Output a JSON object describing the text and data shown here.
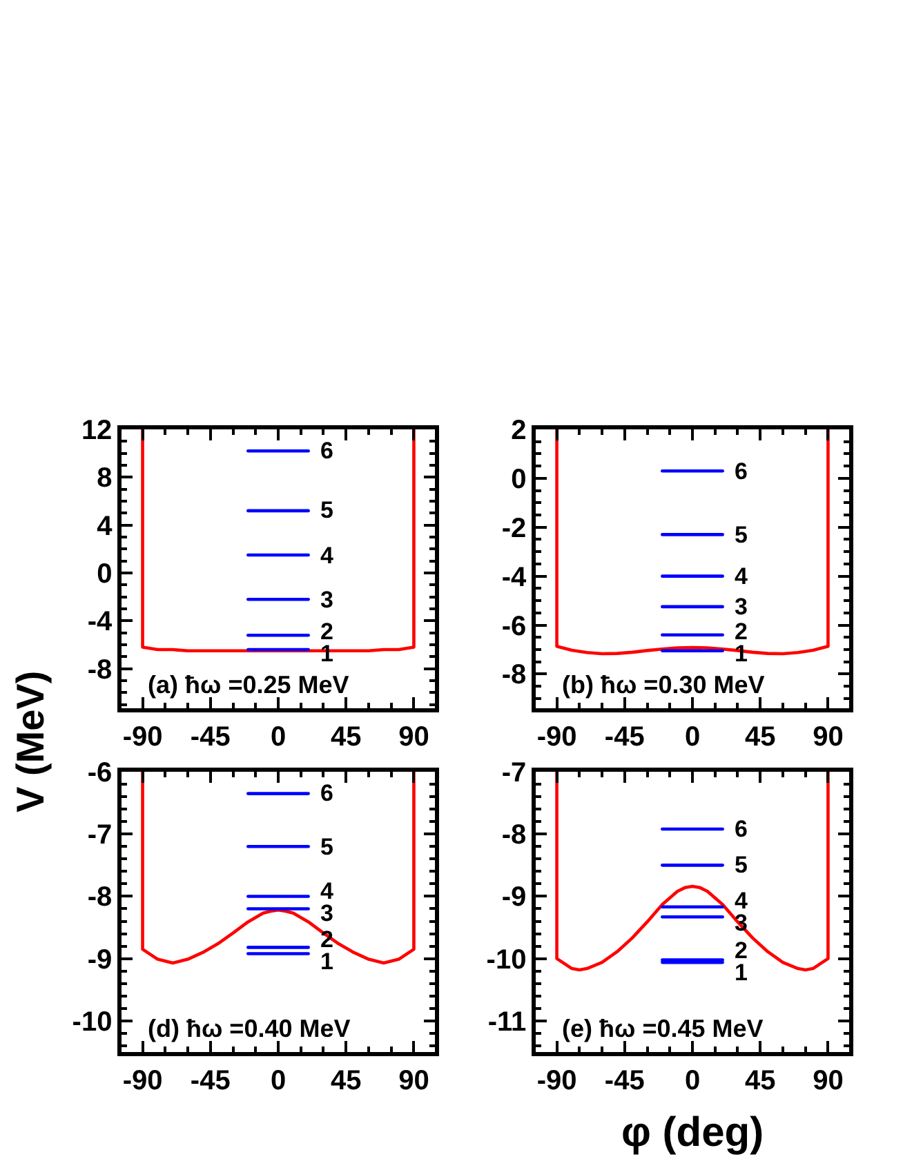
{
  "chart_data": [
    {
      "type": "line",
      "title": "(a) ħω =0.25 MeV",
      "ylabel": "V (MeV)",
      "xlim": [
        -104,
        104
      ],
      "ylim": [
        -11.3,
        12
      ],
      "xticks": [
        -90,
        {
          "value": -75,
          "label": null
        },
        {
          "value": -60,
          "label": null
        },
        -45,
        {
          "value": -30,
          "label": null
        },
        {
          "value": -15,
          "label": null
        },
        0,
        {
          "value": 15,
          "label": null
        },
        {
          "value": 30,
          "label": null
        },
        45,
        {
          "value": 60,
          "label": null
        },
        {
          "value": 75,
          "label": null
        },
        90
      ],
      "yticks": [
        12,
        {
          "value": 11,
          "label": null
        },
        {
          "value": 10,
          "label": null
        },
        {
          "value": 9,
          "label": null
        },
        8,
        {
          "value": 7,
          "label": null
        },
        {
          "value": 6,
          "label": null
        },
        {
          "value": 5,
          "label": null
        },
        4,
        {
          "value": 3,
          "label": null
        },
        {
          "value": 2,
          "label": null
        },
        {
          "value": 1,
          "label": null
        },
        0,
        {
          "value": -1,
          "label": null
        },
        {
          "value": -2,
          "label": null
        },
        {
          "value": -3,
          "label": null
        },
        -4,
        {
          "value": -5,
          "label": null
        },
        {
          "value": -6,
          "label": null
        },
        {
          "value": -7,
          "label": null
        },
        -8,
        {
          "value": -9,
          "label": null
        },
        {
          "value": -10,
          "label": null
        },
        {
          "value": -11,
          "label": null
        }
      ],
      "series": [
        {
          "color": "#ff0000",
          "x": [
            -90,
            -90,
            -80,
            -70,
            -60,
            -50,
            -40,
            -30,
            -20,
            -10,
            0,
            10,
            20,
            30,
            40,
            50,
            60,
            70,
            80,
            90,
            90
          ],
          "values": [
            12,
            -6.2,
            -6.4,
            -6.4,
            -6.5,
            -6.5,
            -6.5,
            -6.5,
            -6.5,
            -6.5,
            -6.5,
            -6.5,
            -6.5,
            -6.5,
            -6.5,
            -6.5,
            -6.5,
            -6.4,
            -6.4,
            -6.2,
            12
          ]
        },
        {
          "name": "1",
          "color": "#0000ff",
          "x": [
            -20,
            20
          ],
          "values": [
            -6.4,
            -6.4
          ]
        },
        {
          "name": "2",
          "color": "#0000ff",
          "x": [
            -20,
            20
          ],
          "values": [
            -5.2,
            -5.2
          ]
        },
        {
          "name": "3",
          "color": "#0000ff",
          "x": [
            -20,
            20
          ],
          "values": [
            -2.2,
            -2.2
          ]
        },
        {
          "name": "4",
          "color": "#0000ff",
          "x": [
            -20,
            20
          ],
          "values": [
            1.5,
            1.5
          ]
        },
        {
          "name": "5",
          "color": "#0000ff",
          "x": [
            -20,
            20
          ],
          "values": [
            5.2,
            5.2
          ]
        },
        {
          "name": "6",
          "color": "#0000ff",
          "x": [
            -20,
            20
          ],
          "values": [
            10.2,
            10.2
          ]
        }
      ]
    },
    {
      "type": "line",
      "title": "(b) ħω =0.30 MeV",
      "xlim": [
        -104,
        104
      ],
      "ylim": [
        -9.4,
        2
      ],
      "xticks": [
        -90,
        {
          "value": -75,
          "label": null
        },
        {
          "value": -60,
          "label": null
        },
        -45,
        {
          "value": -30,
          "label": null
        },
        {
          "value": -15,
          "label": null
        },
        0,
        {
          "value": 15,
          "label": null
        },
        {
          "value": 30,
          "label": null
        },
        45,
        {
          "value": 60,
          "label": null
        },
        {
          "value": 75,
          "label": null
        },
        90
      ],
      "yticks": [
        2,
        {
          "value": 1.5,
          "label": null
        },
        {
          "value": 1,
          "label": null
        },
        {
          "value": 0.5,
          "label": null
        },
        0,
        {
          "value": -0.5,
          "label": null
        },
        {
          "value": -1,
          "label": null
        },
        {
          "value": -1.5,
          "label": null
        },
        -2,
        {
          "value": -2.5,
          "label": null
        },
        {
          "value": -3,
          "label": null
        },
        {
          "value": -3.5,
          "label": null
        },
        -4,
        {
          "value": -4.5,
          "label": null
        },
        {
          "value": -5,
          "label": null
        },
        {
          "value": -5.5,
          "label": null
        },
        -6,
        {
          "value": -6.5,
          "label": null
        },
        {
          "value": -7,
          "label": null
        },
        {
          "value": -7.5,
          "label": null
        },
        -8,
        {
          "value": -8.5,
          "label": null
        },
        {
          "value": -9,
          "label": null
        }
      ],
      "series": [
        {
          "color": "#ff0000",
          "x": [
            -90,
            -90,
            -80,
            -70,
            -60,
            -50,
            -40,
            -30,
            -20,
            -10,
            0,
            10,
            20,
            30,
            40,
            50,
            60,
            70,
            80,
            90,
            90
          ],
          "values": [
            2,
            -6.87,
            -7.03,
            -7.12,
            -7.17,
            -7.16,
            -7.11,
            -7.04,
            -6.98,
            -6.93,
            -6.92,
            -6.93,
            -6.98,
            -7.04,
            -7.11,
            -7.16,
            -7.17,
            -7.12,
            -7.03,
            -6.87,
            2
          ]
        },
        {
          "name": "1",
          "color": "#0000ff",
          "x": [
            -20,
            20
          ],
          "values": [
            -7.05,
            -7.05
          ]
        },
        {
          "name": "2",
          "color": "#0000ff",
          "x": [
            -20,
            20
          ],
          "values": [
            -6.4,
            -6.4
          ]
        },
        {
          "name": "3",
          "color": "#0000ff",
          "x": [
            -20,
            20
          ],
          "values": [
            -5.25,
            -5.25
          ]
        },
        {
          "name": "4",
          "color": "#0000ff",
          "x": [
            -20,
            20
          ],
          "values": [
            -4.0,
            -4.0
          ]
        },
        {
          "name": "5",
          "color": "#0000ff",
          "x": [
            -20,
            20
          ],
          "values": [
            -2.3,
            -2.3
          ]
        },
        {
          "name": "6",
          "color": "#0000ff",
          "x": [
            -20,
            20
          ],
          "values": [
            0.3,
            0.3
          ]
        }
      ]
    },
    {
      "type": "line",
      "title": "(d) ħω =0.40 MeV",
      "xlim": [
        -104,
        104
      ],
      "ylim": [
        -10.5,
        -6
      ],
      "xticks": [
        -90,
        {
          "value": -75,
          "label": null
        },
        {
          "value": -60,
          "label": null
        },
        -45,
        {
          "value": -30,
          "label": null
        },
        {
          "value": -15,
          "label": null
        },
        0,
        {
          "value": 15,
          "label": null
        },
        {
          "value": 30,
          "label": null
        },
        45,
        {
          "value": 60,
          "label": null
        },
        {
          "value": 75,
          "label": null
        },
        90
      ],
      "yticks": [
        -6,
        {
          "value": -6.2,
          "label": null
        },
        {
          "value": -6.4,
          "label": null
        },
        {
          "value": -6.6,
          "label": null
        },
        {
          "value": -6.8,
          "label": null
        },
        -7,
        {
          "value": -7.2,
          "label": null
        },
        {
          "value": -7.4,
          "label": null
        },
        {
          "value": -7.6,
          "label": null
        },
        {
          "value": -7.8,
          "label": null
        },
        -8,
        {
          "value": -8.2,
          "label": null
        },
        {
          "value": -8.4,
          "label": null
        },
        {
          "value": -8.6,
          "label": null
        },
        {
          "value": -8.8,
          "label": null
        },
        -9,
        {
          "value": -9.2,
          "label": null
        },
        {
          "value": -9.4,
          "label": null
        },
        {
          "value": -9.6,
          "label": null
        },
        {
          "value": -9.8,
          "label": null
        },
        -10,
        {
          "value": -10.2,
          "label": null
        },
        {
          "value": -10.4,
          "label": null
        }
      ],
      "series": [
        {
          "color": "#ff0000",
          "x": [
            -90,
            -90,
            -80,
            -70,
            -60,
            -50,
            -40,
            -30,
            -20,
            -10,
            -5,
            0,
            5,
            10,
            20,
            30,
            40,
            50,
            60,
            70,
            80,
            90,
            90
          ],
          "values": [
            -6,
            -8.85,
            -9.01,
            -9.07,
            -9.01,
            -8.9,
            -8.76,
            -8.59,
            -8.41,
            -8.27,
            -8.24,
            -8.22,
            -8.24,
            -8.27,
            -8.41,
            -8.59,
            -8.76,
            -8.9,
            -9.01,
            -9.07,
            -9.01,
            -8.85,
            -6
          ]
        },
        {
          "name": "1",
          "color": "#0000ff",
          "x": [
            -20,
            20
          ],
          "values": [
            -8.92,
            -8.92
          ]
        },
        {
          "name": "2",
          "color": "#0000ff",
          "x": [
            -20,
            20
          ],
          "values": [
            -8.82,
            -8.82
          ]
        },
        {
          "name": "3",
          "color": "#0000ff",
          "x": [
            -20,
            20
          ],
          "values": [
            -8.2,
            -8.2
          ]
        },
        {
          "name": "4",
          "color": "#0000ff",
          "x": [
            -20,
            20
          ],
          "values": [
            -8.0,
            -8.0
          ]
        },
        {
          "name": "5",
          "color": "#0000ff",
          "x": [
            -20,
            20
          ],
          "values": [
            -7.2,
            -7.2
          ]
        },
        {
          "name": "6",
          "color": "#0000ff",
          "x": [
            -20,
            20
          ],
          "values": [
            -6.35,
            -6.35
          ]
        }
      ]
    },
    {
      "type": "line",
      "title": "(e) ħω =0.45 MeV",
      "xlabel": "φ (deg)",
      "xlim": [
        -104,
        104
      ],
      "ylim": [
        -11.5,
        -7
      ],
      "xticks": [
        -90,
        {
          "value": -75,
          "label": null
        },
        {
          "value": -60,
          "label": null
        },
        -45,
        {
          "value": -30,
          "label": null
        },
        {
          "value": -15,
          "label": null
        },
        0,
        {
          "value": 15,
          "label": null
        },
        {
          "value": 30,
          "label": null
        },
        45,
        {
          "value": 60,
          "label": null
        },
        {
          "value": 75,
          "label": null
        },
        90
      ],
      "yticks": [
        -7,
        {
          "value": -7.2,
          "label": null
        },
        {
          "value": -7.4,
          "label": null
        },
        {
          "value": -7.6,
          "label": null
        },
        {
          "value": -7.8,
          "label": null
        },
        -8,
        {
          "value": -8.2,
          "label": null
        },
        {
          "value": -8.4,
          "label": null
        },
        {
          "value": -8.6,
          "label": null
        },
        {
          "value": -8.8,
          "label": null
        },
        -9,
        {
          "value": -9.2,
          "label": null
        },
        {
          "value": -9.4,
          "label": null
        },
        {
          "value": -9.6,
          "label": null
        },
        {
          "value": -9.8,
          "label": null
        },
        -10,
        {
          "value": -10.2,
          "label": null
        },
        {
          "value": -10.4,
          "label": null
        },
        {
          "value": -10.6,
          "label": null
        },
        {
          "value": -10.8,
          "label": null
        },
        -11,
        {
          "value": -11.2,
          "label": null
        },
        {
          "value": -11.4,
          "label": null
        }
      ],
      "series": [
        {
          "color": "#ff0000",
          "x": [
            -90,
            -90,
            -80,
            -75,
            -70,
            -60,
            -50,
            -40,
            -30,
            -20,
            -10,
            -5,
            0,
            5,
            10,
            20,
            30,
            40,
            50,
            60,
            70,
            75,
            80,
            90,
            90
          ],
          "values": [
            -7,
            -10.0,
            -10.16,
            -10.18,
            -10.16,
            -10.06,
            -9.89,
            -9.67,
            -9.41,
            -9.13,
            -8.92,
            -8.86,
            -8.84,
            -8.86,
            -8.92,
            -9.13,
            -9.41,
            -9.67,
            -9.89,
            -10.06,
            -10.16,
            -10.18,
            -10.16,
            -10.0,
            -7
          ]
        },
        {
          "name": "1",
          "color": "#0000ff",
          "x": [
            -20,
            20
          ],
          "values": [
            -10.06,
            -10.06
          ]
        },
        {
          "name": "2",
          "color": "#0000ff",
          "x": [
            -20,
            20
          ],
          "values": [
            -10.02,
            -10.02
          ]
        },
        {
          "name": "3",
          "color": "#0000ff",
          "x": [
            -20,
            20
          ],
          "values": [
            -9.33,
            -9.33
          ]
        },
        {
          "name": "4",
          "color": "#0000ff",
          "x": [
            -20,
            20
          ],
          "values": [
            -9.17,
            -9.17
          ]
        },
        {
          "name": "5",
          "color": "#0000ff",
          "x": [
            -20,
            20
          ],
          "values": [
            -8.5,
            -8.5
          ]
        },
        {
          "name": "6",
          "color": "#0000ff",
          "x": [
            -20,
            20
          ],
          "values": [
            -7.92,
            -7.92
          ]
        }
      ]
    }
  ]
}
